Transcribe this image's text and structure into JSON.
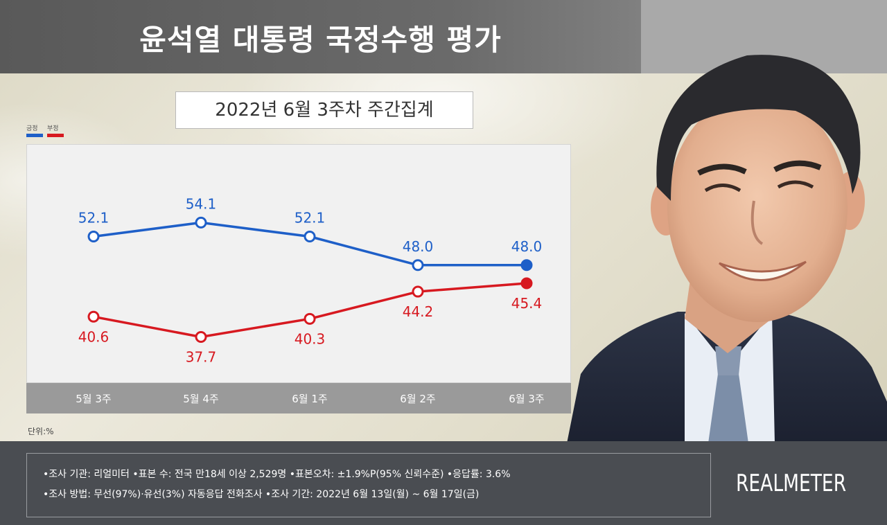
{
  "header": {
    "title": "윤석열 대통령 국정수행 평가",
    "subtitle": "2022년 6월 3주차 주간집계"
  },
  "legend": [
    {
      "label": "긍정",
      "color": "#1e5fc8"
    },
    {
      "label": "부정",
      "color": "#d71920"
    }
  ],
  "chart_data": {
    "type": "line",
    "categories": [
      "5월 3주",
      "5월 4주",
      "6월 1주",
      "6월 2주",
      "6월 3주"
    ],
    "series": [
      {
        "name": "긍정",
        "color": "#1e5fc8",
        "values": [
          52.1,
          54.1,
          52.1,
          48.0,
          48.0
        ]
      },
      {
        "name": "부정",
        "color": "#d71920",
        "values": [
          40.6,
          37.7,
          40.3,
          44.2,
          45.4
        ]
      }
    ],
    "ylim": [
      30,
      60
    ],
    "grid": false,
    "legend_position": "top-left",
    "unit_label": "단위:%"
  },
  "footer": {
    "line1": "•조사 기관: 리얼미터 •표본 수: 전국 만18세 이상 2,529명 •표본오차: ±1.9%P(95% 신뢰수준) •응답률: 3.6%",
    "line2": "•조사 방법: 무선(97%)·유선(3%) 자동응답 전화조사 •조사 기간: 2022년 6월 13일(월) ~ 6월 17일(금)",
    "brand": "REALMETER"
  }
}
